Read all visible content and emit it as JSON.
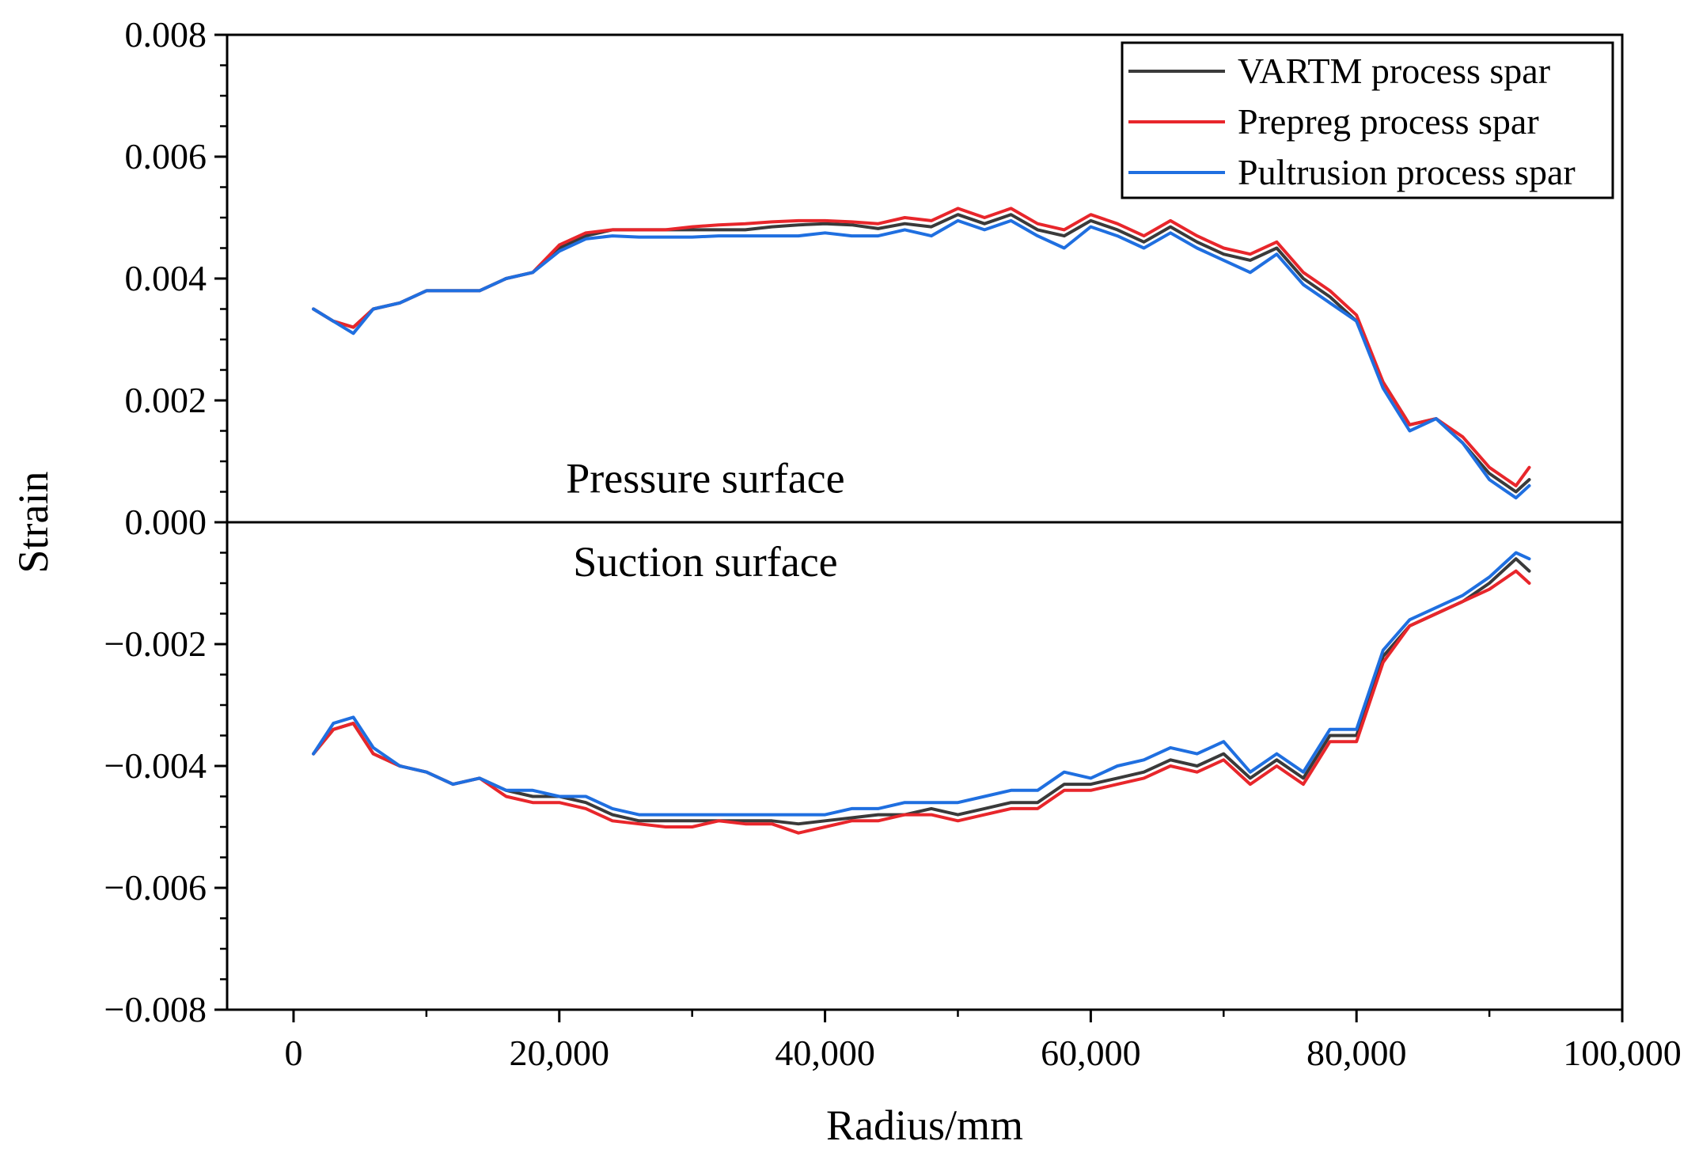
{
  "chart_data": {
    "type": "line",
    "xlabel": "Radius/mm",
    "ylabel": "Strain",
    "xlim": [
      -5000,
      100000
    ],
    "ylim": [
      -0.008,
      0.008
    ],
    "x_ticks": [
      0,
      20000,
      40000,
      60000,
      80000,
      100000
    ],
    "x_tick_labels": [
      "0",
      "20,000",
      "40,000",
      "60,000",
      "80,000",
      "100,000"
    ],
    "y_ticks": [
      -0.008,
      -0.006,
      -0.004,
      -0.002,
      0.0,
      0.002,
      0.004,
      0.006,
      0.008
    ],
    "y_tick_labels": [
      "−0.008",
      "−0.006",
      "−0.004",
      "−0.002",
      "0.000",
      "0.002",
      "0.004",
      "0.006",
      "0.008"
    ],
    "grid": false,
    "zero_line": true,
    "legend_position": "top-right",
    "annotations": [
      {
        "text": "Pressure surface",
        "x": 31000,
        "y": 0.00072
      },
      {
        "text": "Suction surface",
        "x": 31000,
        "y": -0.00065
      }
    ],
    "x": [
      1500,
      3000,
      4500,
      6000,
      8000,
      10000,
      12000,
      14000,
      16000,
      18000,
      20000,
      22000,
      24000,
      26000,
      28000,
      30000,
      32000,
      34000,
      36000,
      38000,
      40000,
      42000,
      44000,
      46000,
      48000,
      50000,
      52000,
      54000,
      56000,
      58000,
      60000,
      62000,
      64000,
      66000,
      68000,
      70000,
      72000,
      74000,
      76000,
      78000,
      80000,
      82000,
      84000,
      86000,
      88000,
      90000,
      92000,
      93000
    ],
    "series": [
      {
        "name": "VARTM process spar",
        "color": "#3a3a3a",
        "pressure": [
          0.0035,
          0.0033,
          0.0032,
          0.0035,
          0.0036,
          0.0038,
          0.0038,
          0.0038,
          0.004,
          0.0041,
          0.0045,
          0.0047,
          0.0048,
          0.0048,
          0.0048,
          0.0048,
          0.0048,
          0.0048,
          0.00485,
          0.00488,
          0.0049,
          0.00488,
          0.00482,
          0.0049,
          0.00485,
          0.00505,
          0.0049,
          0.00505,
          0.0048,
          0.0047,
          0.00495,
          0.0048,
          0.0046,
          0.00485,
          0.0046,
          0.0044,
          0.0043,
          0.0045,
          0.004,
          0.0037,
          0.0033,
          0.0023,
          0.0016,
          0.0017,
          0.0013,
          0.0008,
          0.0005,
          0.0007
        ],
        "suction": [
          -0.0038,
          -0.0034,
          -0.0033,
          -0.0038,
          -0.004,
          -0.0041,
          -0.0043,
          -0.0042,
          -0.0044,
          -0.0045,
          -0.0045,
          -0.0046,
          -0.0048,
          -0.0049,
          -0.0049,
          -0.0049,
          -0.0049,
          -0.0049,
          -0.0049,
          -0.00495,
          -0.0049,
          -0.00485,
          -0.0048,
          -0.0048,
          -0.0047,
          -0.0048,
          -0.0047,
          -0.0046,
          -0.0046,
          -0.0043,
          -0.0043,
          -0.0042,
          -0.0041,
          -0.0039,
          -0.004,
          -0.0038,
          -0.0042,
          -0.0039,
          -0.0042,
          -0.0035,
          -0.0035,
          -0.0022,
          -0.0017,
          -0.0015,
          -0.0013,
          -0.001,
          -0.0006,
          -0.0008
        ]
      },
      {
        "name": "Prepreg process spar",
        "color": "#e8262b",
        "pressure": [
          0.0035,
          0.0033,
          0.0032,
          0.0035,
          0.0036,
          0.0038,
          0.0038,
          0.0038,
          0.004,
          0.0041,
          0.00455,
          0.00475,
          0.0048,
          0.0048,
          0.0048,
          0.00485,
          0.00488,
          0.0049,
          0.00493,
          0.00495,
          0.00495,
          0.00493,
          0.0049,
          0.005,
          0.00495,
          0.00515,
          0.005,
          0.00515,
          0.0049,
          0.0048,
          0.00505,
          0.0049,
          0.0047,
          0.00495,
          0.0047,
          0.0045,
          0.0044,
          0.0046,
          0.0041,
          0.0038,
          0.0034,
          0.0023,
          0.0016,
          0.0017,
          0.0014,
          0.0009,
          0.0006,
          0.0009
        ],
        "suction": [
          -0.0038,
          -0.0034,
          -0.0033,
          -0.0038,
          -0.004,
          -0.0041,
          -0.0043,
          -0.0042,
          -0.0045,
          -0.0046,
          -0.0046,
          -0.0047,
          -0.0049,
          -0.00495,
          -0.005,
          -0.005,
          -0.0049,
          -0.00495,
          -0.00495,
          -0.0051,
          -0.005,
          -0.0049,
          -0.0049,
          -0.0048,
          -0.0048,
          -0.0049,
          -0.0048,
          -0.0047,
          -0.0047,
          -0.0044,
          -0.0044,
          -0.0043,
          -0.0042,
          -0.004,
          -0.0041,
          -0.0039,
          -0.0043,
          -0.004,
          -0.0043,
          -0.0036,
          -0.0036,
          -0.0023,
          -0.0017,
          -0.0015,
          -0.0013,
          -0.0011,
          -0.0008,
          -0.001
        ]
      },
      {
        "name": "Pultrusion process spar",
        "color": "#1f6fe0",
        "pressure": [
          0.0035,
          0.0033,
          0.0031,
          0.0035,
          0.0036,
          0.0038,
          0.0038,
          0.0038,
          0.004,
          0.0041,
          0.00445,
          0.00465,
          0.0047,
          0.00468,
          0.00468,
          0.00468,
          0.0047,
          0.0047,
          0.0047,
          0.0047,
          0.00475,
          0.0047,
          0.0047,
          0.0048,
          0.0047,
          0.00495,
          0.0048,
          0.00495,
          0.0047,
          0.0045,
          0.00485,
          0.0047,
          0.0045,
          0.00475,
          0.0045,
          0.0043,
          0.0041,
          0.0044,
          0.0039,
          0.0036,
          0.0033,
          0.0022,
          0.0015,
          0.0017,
          0.0013,
          0.0007,
          0.0004,
          0.0006
        ],
        "suction": [
          -0.0038,
          -0.0033,
          -0.0032,
          -0.0037,
          -0.004,
          -0.0041,
          -0.0043,
          -0.0042,
          -0.0044,
          -0.0044,
          -0.0045,
          -0.0045,
          -0.0047,
          -0.0048,
          -0.0048,
          -0.0048,
          -0.0048,
          -0.0048,
          -0.0048,
          -0.0048,
          -0.0048,
          -0.0047,
          -0.0047,
          -0.0046,
          -0.0046,
          -0.0046,
          -0.0045,
          -0.0044,
          -0.0044,
          -0.0041,
          -0.0042,
          -0.004,
          -0.0039,
          -0.0037,
          -0.0038,
          -0.0036,
          -0.0041,
          -0.0038,
          -0.0041,
          -0.0034,
          -0.0034,
          -0.0021,
          -0.0016,
          -0.0014,
          -0.0012,
          -0.0009,
          -0.0005,
          -0.0006
        ]
      }
    ]
  }
}
